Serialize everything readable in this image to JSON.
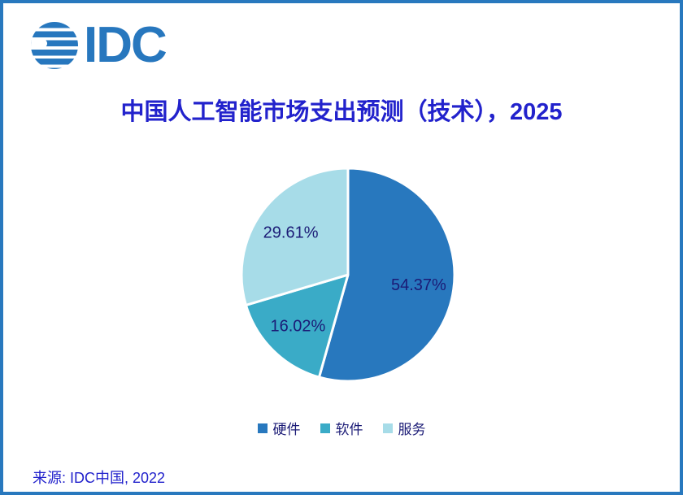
{
  "page": {
    "background": "#FFFFFF",
    "border_color": "#2878BE"
  },
  "logo": {
    "text": "IDC",
    "color": "#2777BE"
  },
  "header": {
    "title": "中国人工智能市场支出预测（技术），2025",
    "title_color": "#2222CC"
  },
  "chart_data": {
    "type": "pie",
    "title": "中国人工智能市场支出预测（技术），2025",
    "labels": [
      "硬件",
      "软件",
      "服务"
    ],
    "values": [
      54.37,
      16.02,
      29.61
    ],
    "display_values": [
      "54.37%",
      "16.02%",
      "29.61%"
    ],
    "colors": [
      "#2878BE",
      "#3AABC7",
      "#A7DCE8"
    ],
    "label_color": "#1B1B76",
    "slice_border_color": "#FFFFFF",
    "start_angle": "top",
    "direction": "clockwise",
    "legend_position": "bottom"
  },
  "footer": {
    "source": "来源: IDC中国, 2022",
    "source_color": "#2222CC"
  }
}
